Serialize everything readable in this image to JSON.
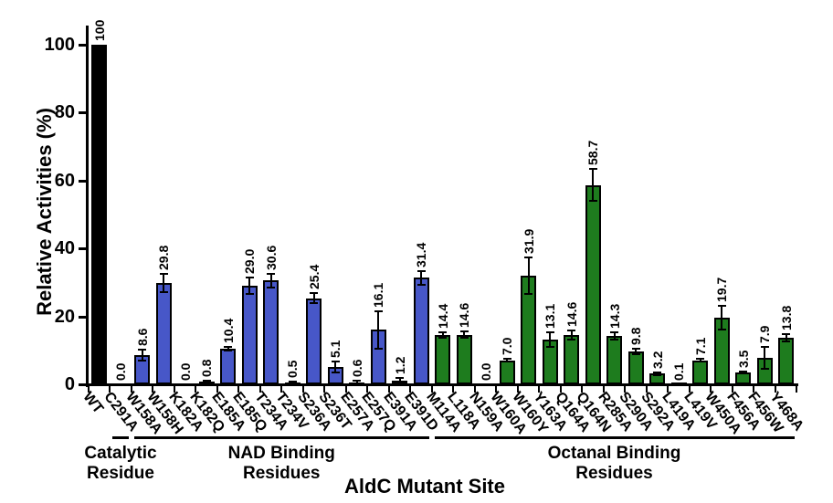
{
  "chart_data": {
    "type": "bar",
    "title": "",
    "xlabel": "AldC Mutant Site",
    "ylabel": "Relative Activities (%)",
    "ylim": [
      0,
      100
    ],
    "yticks": [
      0,
      20,
      40,
      60,
      80,
      100
    ],
    "grid": false,
    "legend_position": "none",
    "categories": [
      "WT",
      "C291A",
      "W158A",
      "W158H",
      "K182A",
      "K182Q",
      "E185A",
      "E185Q",
      "T234A",
      "T234V",
      "S236A",
      "S236T",
      "E257A",
      "E257Q",
      "E391A",
      "E391D",
      "M114A",
      "L118A",
      "N159A",
      "W160A",
      "W160Y",
      "Y163A",
      "Q164A",
      "Q164N",
      "R285A",
      "S290A",
      "S292A",
      "L419A",
      "L419V",
      "W450A",
      "F456A",
      "F456W",
      "Y468A"
    ],
    "values": [
      100,
      0.0,
      8.6,
      29.8,
      0.0,
      0.8,
      10.4,
      29.0,
      30.6,
      0.5,
      25.4,
      5.1,
      0.6,
      16.1,
      1.2,
      31.4,
      14.4,
      14.6,
      0.0,
      7.0,
      31.9,
      13.1,
      14.6,
      58.7,
      14.3,
      9.8,
      3.2,
      0.1,
      7.1,
      19.7,
      3.5,
      7.9,
      13.8
    ],
    "value_labels": [
      "100",
      "0.0",
      "8.6",
      "29.8",
      "0.0",
      "0.8",
      "10.4",
      "29.0",
      "30.6",
      "0.5",
      "25.4",
      "5.1",
      "0.6",
      "16.1",
      "1.2",
      "31.4",
      "14.4",
      "14.6",
      "0.0",
      "7.0",
      "31.9",
      "13.1",
      "14.6",
      "58.7",
      "14.3",
      "9.8",
      "3.2",
      "0.1",
      "7.1",
      "19.7",
      "3.5",
      "7.9",
      "13.8"
    ],
    "errors": [
      0,
      0,
      1.6,
      2.7,
      0,
      0.3,
      0.5,
      2.5,
      2.0,
      0.2,
      1.4,
      1.6,
      0.4,
      5.5,
      0.8,
      2.0,
      0.8,
      0.9,
      0,
      0.4,
      5.4,
      2.2,
      1.3,
      4.7,
      1.1,
      0.8,
      0.4,
      0,
      0.4,
      3.5,
      0.3,
      3.2,
      1.1
    ],
    "bar_color_keys": [
      "wt",
      "catalytic",
      "nad",
      "nad",
      "nad",
      "nad",
      "nad",
      "nad",
      "nad",
      "nad",
      "nad",
      "nad",
      "nad",
      "nad",
      "nad",
      "nad",
      "octanal",
      "octanal",
      "octanal",
      "octanal",
      "octanal",
      "octanal",
      "octanal",
      "octanal",
      "octanal",
      "octanal",
      "octanal",
      "octanal",
      "octanal",
      "octanal",
      "octanal",
      "octanal",
      "octanal"
    ],
    "colors": {
      "wt": "#000000",
      "catalytic": "#000000",
      "nad": "#4757C8",
      "octanal": "#1E7C1E",
      "axis": "#000000",
      "error_bar": "#000000"
    },
    "groups": [
      {
        "name": "catalytic",
        "label_lines": [
          "Catalytic",
          "Residue"
        ],
        "first_bar": 1,
        "last_bar": 1
      },
      {
        "name": "nad",
        "label_lines": [
          "NAD Binding",
          "Residues"
        ],
        "first_bar": 2,
        "last_bar": 15
      },
      {
        "name": "octanal",
        "label_lines": [
          "Octanal Binding",
          "Residues"
        ],
        "first_bar": 16,
        "last_bar": 32
      }
    ]
  }
}
